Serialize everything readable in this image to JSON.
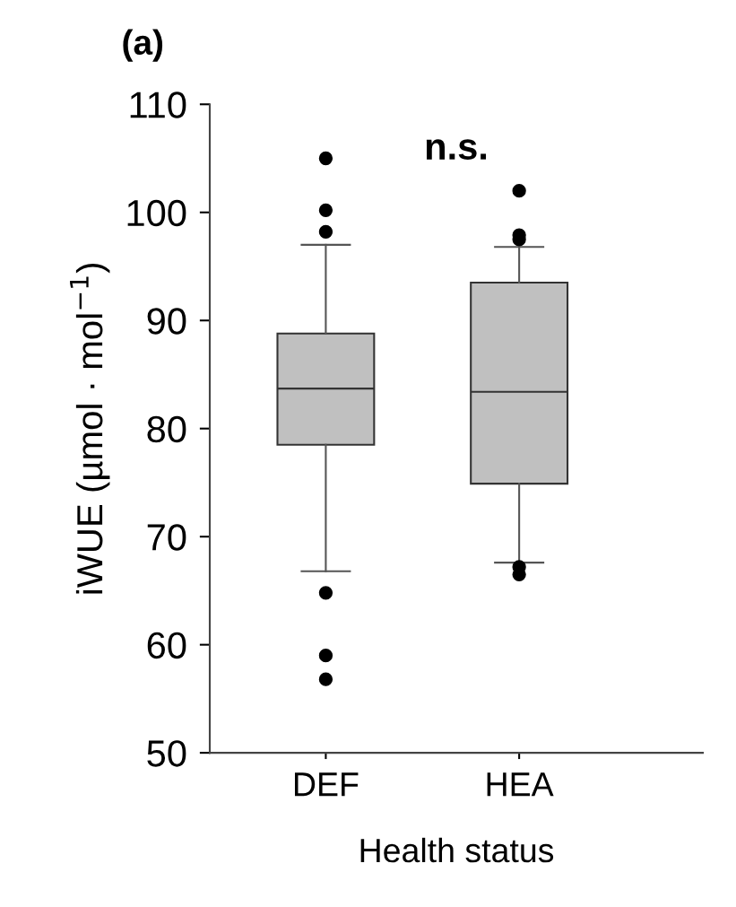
{
  "chart_data": {
    "type": "box",
    "title": "(a)",
    "xlabel": "Health status",
    "ylabel": "iWUE (µmol · mol$^{−1}$)",
    "categories": [
      "DEF",
      "HEA"
    ],
    "boxes": [
      {
        "low": 66.8,
        "q1": 78.5,
        "median": 83.7,
        "q3": 88.8,
        "high": 97,
        "outliers": [
          105,
          100.2,
          98.2,
          64.8,
          59,
          56.8
        ]
      },
      {
        "low": 67.6,
        "q1": 74.9,
        "median": 83.4,
        "q3": 93.5,
        "high": 96.8,
        "outliers": [
          102,
          97.9,
          97.5,
          67.2,
          66.5
        ]
      }
    ],
    "color": "#c0c0c0",
    "ylim": [
      50,
      110
    ],
    "yticks": [
      50,
      60,
      70,
      80,
      90,
      100,
      110
    ],
    "annotations": [
      "n.s."
    ],
    "grid": false
  }
}
